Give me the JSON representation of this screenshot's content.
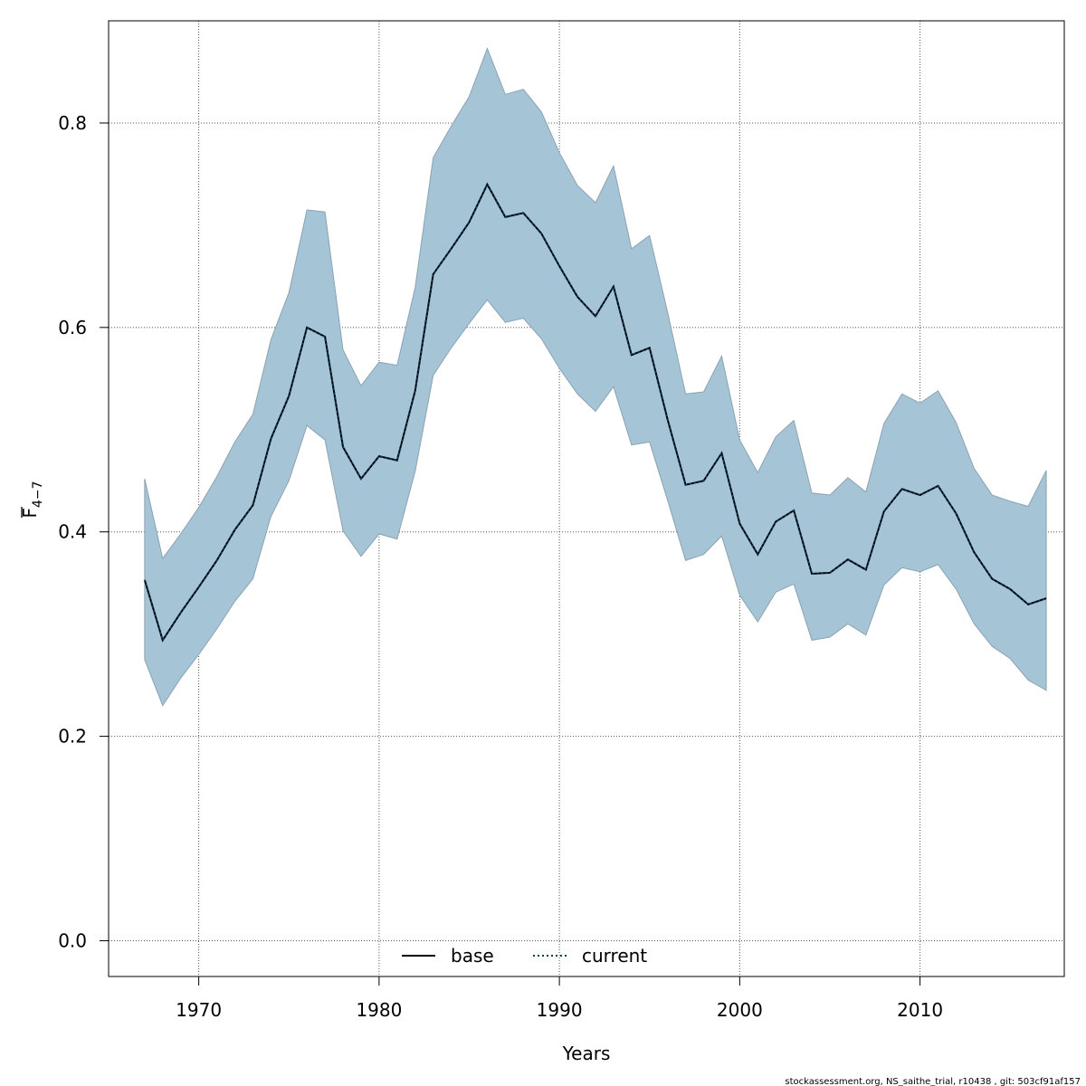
{
  "chart_data": {
    "type": "line",
    "xlabel": "Years",
    "ylabel_main": "F",
    "ylabel_sub": "4−7",
    "xlim": [
      1965,
      2018
    ],
    "ylim": [
      -0.035,
      0.9
    ],
    "x_ticks": [
      1970,
      1980,
      1990,
      2000,
      2010
    ],
    "y_ticks": [
      0.0,
      0.2,
      0.4,
      0.6,
      0.8
    ],
    "y_tick_labels": [
      "0.0",
      "0.2",
      "0.4",
      "0.6",
      "0.8"
    ],
    "grid": true,
    "legend_position": "bottom-center",
    "x": [
      1967,
      1968,
      1969,
      1970,
      1971,
      1972,
      1973,
      1974,
      1975,
      1976,
      1977,
      1978,
      1979,
      1980,
      1981,
      1982,
      1983,
      1984,
      1985,
      1986,
      1987,
      1988,
      1989,
      1990,
      1991,
      1992,
      1993,
      1994,
      1995,
      1996,
      1997,
      1998,
      1999,
      2000,
      2001,
      2002,
      2003,
      2004,
      2005,
      2006,
      2007,
      2008,
      2009,
      2010,
      2011,
      2012,
      2013,
      2014,
      2015,
      2016,
      2017
    ],
    "series": [
      {
        "name": "base",
        "line_style": "solid",
        "values": [
          0.353,
          0.294,
          0.321,
          0.346,
          0.372,
          0.402,
          0.426,
          0.491,
          0.533,
          0.6,
          0.591,
          0.483,
          0.452,
          0.474,
          0.47,
          0.538,
          0.652,
          0.677,
          0.703,
          0.74,
          0.708,
          0.712,
          0.692,
          0.66,
          0.63,
          0.611,
          0.64,
          0.573,
          0.58,
          0.51,
          0.446,
          0.45,
          0.477,
          0.408,
          0.378,
          0.41,
          0.421,
          0.359,
          0.36,
          0.373,
          0.363,
          0.42,
          0.442,
          0.436,
          0.445,
          0.418,
          0.38,
          0.354,
          0.344,
          0.329,
          0.335
        ]
      },
      {
        "name": "current",
        "line_style": "dotted",
        "values": [
          0.353,
          0.294,
          0.321,
          0.346,
          0.372,
          0.402,
          0.426,
          0.491,
          0.533,
          0.6,
          0.591,
          0.483,
          0.452,
          0.474,
          0.47,
          0.538,
          0.652,
          0.677,
          0.703,
          0.74,
          0.708,
          0.712,
          0.692,
          0.66,
          0.63,
          0.611,
          0.64,
          0.573,
          0.58,
          0.51,
          0.446,
          0.45,
          0.477,
          0.408,
          0.378,
          0.41,
          0.421,
          0.359,
          0.36,
          0.373,
          0.363,
          0.42,
          0.442,
          0.436,
          0.445,
          0.418,
          0.38,
          0.354,
          0.344,
          0.329,
          0.335
        ]
      }
    ],
    "ci_upper": [
      0.452,
      0.374,
      0.398,
      0.424,
      0.454,
      0.488,
      0.515,
      0.588,
      0.634,
      0.715,
      0.713,
      0.578,
      0.543,
      0.566,
      0.563,
      0.639,
      0.766,
      0.797,
      0.826,
      0.873,
      0.828,
      0.833,
      0.811,
      0.771,
      0.739,
      0.722,
      0.758,
      0.677,
      0.69,
      0.615,
      0.535,
      0.537,
      0.572,
      0.49,
      0.458,
      0.493,
      0.509,
      0.438,
      0.436,
      0.453,
      0.439,
      0.506,
      0.535,
      0.526,
      0.538,
      0.507,
      0.462,
      0.436,
      0.43,
      0.425,
      0.46
    ],
    "ci_lower": [
      0.275,
      0.23,
      0.257,
      0.28,
      0.305,
      0.332,
      0.354,
      0.415,
      0.45,
      0.504,
      0.49,
      0.401,
      0.376,
      0.398,
      0.393,
      0.459,
      0.553,
      0.58,
      0.604,
      0.627,
      0.605,
      0.609,
      0.589,
      0.56,
      0.535,
      0.518,
      0.542,
      0.485,
      0.488,
      0.431,
      0.372,
      0.378,
      0.396,
      0.338,
      0.312,
      0.341,
      0.349,
      0.294,
      0.297,
      0.31,
      0.299,
      0.348,
      0.365,
      0.361,
      0.368,
      0.344,
      0.31,
      0.288,
      0.276,
      0.255,
      0.245
    ],
    "colors": {
      "ci_fill": "#a5c4d5",
      "ci_stroke": "#8aa3b2",
      "base_line": "#000000",
      "current_line": "#0b3e66",
      "grid": "#555555",
      "frame": "#000000"
    }
  },
  "footer_text": "stockassessment.org, NS_saithe_trial, r10438 , git: 503cf91af157"
}
